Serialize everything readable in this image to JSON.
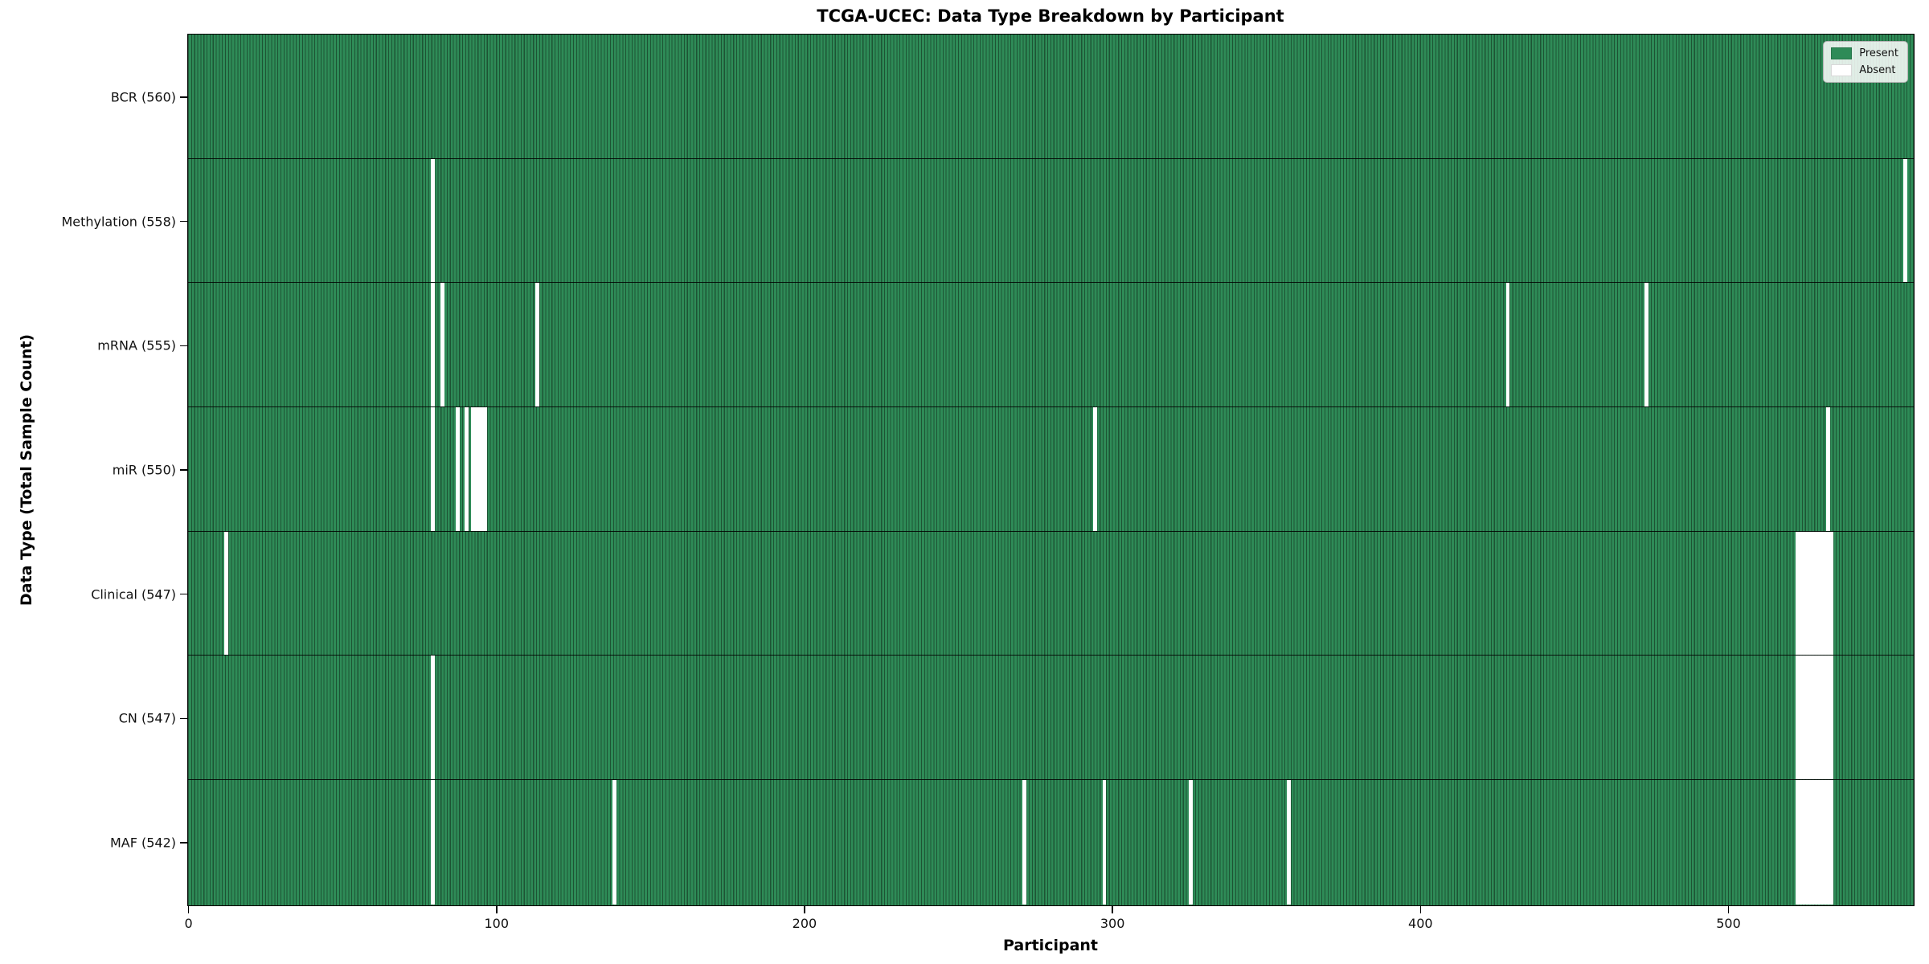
{
  "chart_data": {
    "type": "heatmap",
    "title": "TCGA-UCEC: Data Type Breakdown by Participant",
    "xlabel": "Participant",
    "ylabel": "Data Type (Total Sample Count)",
    "x_ticks": [
      0,
      100,
      200,
      300,
      400,
      500
    ],
    "xlim": [
      0,
      560
    ],
    "n_participants": 560,
    "grid": false,
    "colors": {
      "present_fill": "#2e8b57",
      "present_edge": "#1d5434",
      "absent": "#ffffff",
      "row_divider": "#000000",
      "plot_border": "#000000"
    },
    "legend": {
      "position": "top-right",
      "entries": [
        {
          "label": "Present",
          "color": "#2e8b57"
        },
        {
          "label": "Absent",
          "color": "#ffffff"
        }
      ]
    },
    "rows": [
      {
        "label": "BCR (560)",
        "data_type": "BCR",
        "present_count": 560,
        "absent_participants": []
      },
      {
        "label": "Methylation (558)",
        "data_type": "Methylation",
        "present_count": 558,
        "absent_participants": [
          79,
          557
        ]
      },
      {
        "label": "mRNA (555)",
        "data_type": "mRNA",
        "present_count": 555,
        "absent_participants": [
          79,
          82,
          113,
          428,
          473
        ]
      },
      {
        "label": "miR (550)",
        "data_type": "miR",
        "present_count": 550,
        "absent_participants": [
          79,
          87,
          90,
          92,
          93,
          94,
          95,
          96,
          294,
          532
        ]
      },
      {
        "label": "Clinical (547)",
        "data_type": "Clinical",
        "present_count": 547,
        "absent_participants": [
          12,
          522,
          523,
          524,
          525,
          526,
          527,
          528,
          529,
          530,
          531,
          532,
          533
        ]
      },
      {
        "label": "CN (547)",
        "data_type": "CN",
        "present_count": 547,
        "absent_participants": [
          79,
          522,
          523,
          524,
          525,
          526,
          527,
          528,
          529,
          530,
          531,
          532,
          533
        ]
      },
      {
        "label": "MAF (542)",
        "data_type": "MAF",
        "present_count": 542,
        "absent_participants": [
          79,
          138,
          271,
          297,
          325,
          357,
          522,
          523,
          524,
          525,
          526,
          527,
          528,
          529,
          530,
          531,
          532,
          533
        ]
      }
    ]
  }
}
